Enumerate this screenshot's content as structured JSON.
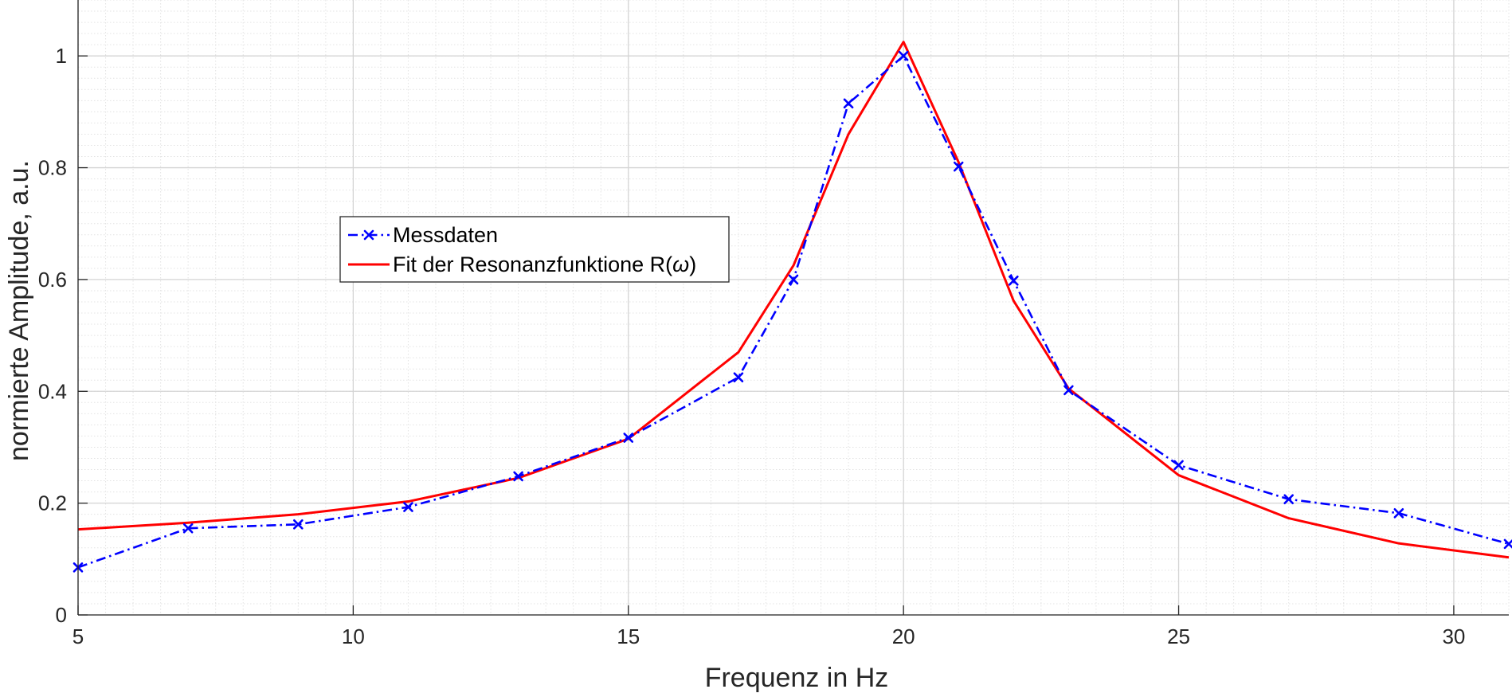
{
  "chart_data": {
    "type": "line",
    "xlabel": "Frequenz in Hz",
    "ylabel": "normierte Amplitude, a.u.",
    "xlim": [
      5,
      31
    ],
    "ylim": [
      0,
      1.1
    ],
    "xticks": [
      5,
      10,
      15,
      20,
      25,
      30
    ],
    "yticks": [
      0,
      0.2,
      0.4,
      0.6,
      0.8,
      1
    ],
    "xtick_labels": [
      "5",
      "10",
      "15",
      "20",
      "25",
      "30"
    ],
    "ytick_labels": [
      "0",
      "0.2",
      "0.4",
      "0.6",
      "0.8",
      "1"
    ],
    "grid": true,
    "minor_grid": true,
    "legend_position": "upper-left",
    "series": [
      {
        "name": "Messdaten",
        "color": "#0000ff",
        "line_style": "dash-dot",
        "marker": "x",
        "x": [
          5,
          7,
          9,
          11,
          13,
          15,
          17,
          18,
          19,
          20,
          21,
          22,
          23,
          25,
          27,
          29,
          31
        ],
        "y": [
          0.085,
          0.155,
          0.162,
          0.193,
          0.248,
          0.317,
          0.425,
          0.6,
          0.915,
          1.0,
          0.802,
          0.598,
          0.402,
          0.268,
          0.207,
          0.182,
          0.127
        ]
      },
      {
        "name_prefix": "Fit der Resonanzfunktione R(",
        "name_symbol": "ω",
        "name_suffix": ")",
        "color": "#ff0000",
        "line_style": "solid",
        "x": [
          5,
          7,
          9,
          11,
          13,
          15,
          17,
          18,
          19,
          20,
          21,
          22,
          23,
          25,
          27,
          29,
          31
        ],
        "y": [
          0.153,
          0.165,
          0.18,
          0.203,
          0.245,
          0.315,
          0.47,
          0.625,
          0.86,
          1.025,
          0.81,
          0.562,
          0.405,
          0.25,
          0.173,
          0.128,
          0.103
        ]
      }
    ]
  }
}
